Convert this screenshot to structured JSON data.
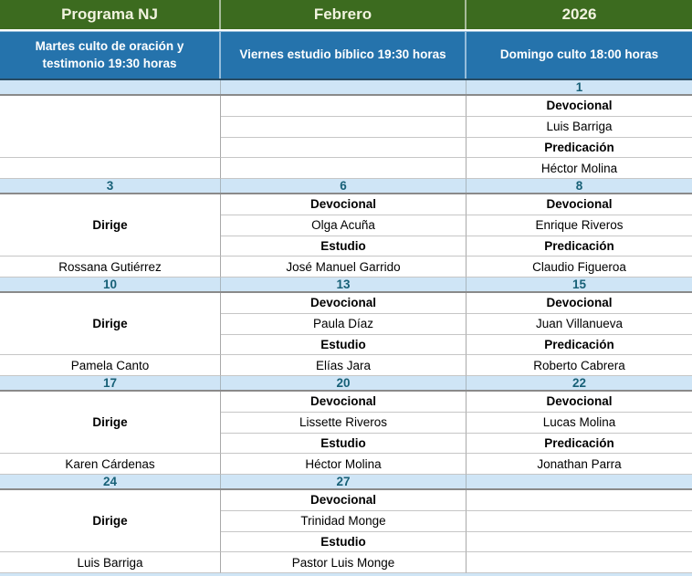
{
  "header": {
    "titles": [
      "Programa NJ",
      "Febrero",
      "2026"
    ]
  },
  "subheader": {
    "labels": [
      "Martes culto de oración y testimonio 19:30 horas",
      "Viernes estudio bíblico 19:30 horas",
      "Domingo culto 18:00 horas"
    ]
  },
  "blocks": [
    {
      "dates": [
        "",
        "",
        "1"
      ],
      "col1": {
        "dirige": "",
        "name": ""
      },
      "col2": [
        "",
        "",
        "",
        ""
      ],
      "col3": [
        "Devocional",
        "Luis Barriga",
        "Predicación",
        "Héctor Molina"
      ]
    },
    {
      "dates": [
        "3",
        "6",
        "8"
      ],
      "col1": {
        "dirige": "Dirige",
        "name": "Rossana Gutiérrez"
      },
      "col2": [
        "Devocional",
        "Olga Acuña",
        "Estudio",
        "José Manuel Garrido"
      ],
      "col3": [
        "Devocional",
        "Enrique Riveros",
        "Predicación",
        "Claudio Figueroa"
      ]
    },
    {
      "dates": [
        "10",
        "13",
        "15"
      ],
      "col1": {
        "dirige": "Dirige",
        "name": "Pamela Canto"
      },
      "col2": [
        "Devocional",
        "Paula Díaz",
        "Estudio",
        "Elías Jara"
      ],
      "col3": [
        "Devocional",
        "Juan Villanueva",
        "Predicación",
        "Roberto Cabrera"
      ]
    },
    {
      "dates": [
        "17",
        "20",
        "22"
      ],
      "col1": {
        "dirige": "Dirige",
        "name": "Karen Cárdenas"
      },
      "col2": [
        "Devocional",
        "Lissette Riveros",
        "Estudio",
        "Héctor Molina"
      ],
      "col3": [
        "Devocional",
        "Lucas Molina",
        "Predicación",
        "Jonathan Parra"
      ]
    },
    {
      "dates": [
        "24",
        "27",
        ""
      ],
      "col1": {
        "dirige": "Dirige",
        "name": "Luis Barriga"
      },
      "col2": [
        "Devocional",
        "Trinidad Monge",
        "Estudio",
        "Pastor Luis Monge"
      ],
      "col3": [
        "",
        "",
        "",
        ""
      ]
    }
  ],
  "colors": {
    "header_green": "#3c6b1f",
    "header_text": "#f1f3df",
    "subheader_blue": "#2573ac",
    "subheader_text": "#ffffff",
    "date_row_bg": "#cfe5f6",
    "date_text": "#176077",
    "grid_line": "#c6c6c6"
  }
}
